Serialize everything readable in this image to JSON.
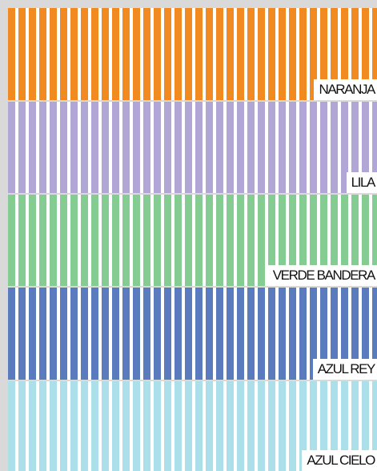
{
  "swatches": [
    {
      "label": "NARANJA",
      "color": "#f28a22"
    },
    {
      "label": "LILA",
      "color": "#b2a6d6"
    },
    {
      "label": "VERDE BANDERA",
      "color": "#85cc92"
    },
    {
      "label": "AZUL REY",
      "color": "#5a7cbf"
    },
    {
      "label": "AZUL CIELO",
      "color": "#abdfea"
    }
  ]
}
